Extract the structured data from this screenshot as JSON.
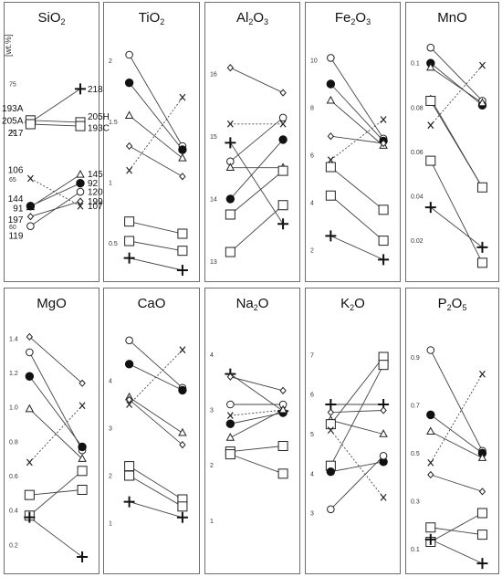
{
  "chart_data": {
    "type": "scatter",
    "ylabel": "[wt.%]",
    "symbols": [
      "filled-circle",
      "open-circle",
      "open-triangle",
      "open-diamond",
      "open-square",
      "plus",
      "x"
    ],
    "panels": [
      {
        "id": "sio2",
        "title": "SiO",
        "sub": "2",
        "ylim": [
          57,
          80
        ],
        "ticks": [
          60,
          65,
          70,
          75
        ],
        "pairs": [
          {
            "s": "plus",
            "v": [
              71.0,
              74.5
            ],
            "dash": false
          },
          {
            "s": "open-square",
            "v": [
              71.2,
              71.0
            ],
            "dash": false
          },
          {
            "s": "open-square",
            "v": [
              70.8,
              70.6
            ],
            "dash": false
          },
          {
            "s": "x",
            "v": [
              65.1,
              62.2
            ],
            "dash": true
          },
          {
            "s": "open-triangle",
            "v": [
              62.1,
              65.5
            ],
            "dash": false
          },
          {
            "s": "filled-circle",
            "v": [
              62.2,
              64.6
            ],
            "dash": false
          },
          {
            "s": "open-circle",
            "v": [
              60.1,
              63.7
            ],
            "dash": false
          },
          {
            "s": "open-diamond",
            "v": [
              61.1,
              62.7
            ],
            "dash": false
          }
        ],
        "labels": [
          {
            "t": "193A",
            "side": "l",
            "y": 72.5
          },
          {
            "t": "205A",
            "side": "l",
            "y": 71.2
          },
          {
            "t": "217",
            "side": "l",
            "y": 69.9
          },
          {
            "t": "218",
            "side": "r",
            "y": 74.5
          },
          {
            "t": "205H",
            "side": "r",
            "y": 71.6
          },
          {
            "t": "193C",
            "side": "r",
            "y": 70.4
          },
          {
            "t": "106",
            "side": "l",
            "y": 66.0
          },
          {
            "t": "144",
            "side": "l",
            "y": 63.0
          },
          {
            "t": "91",
            "side": "l",
            "y": 62.0
          },
          {
            "t": "197",
            "side": "l",
            "y": 60.8
          },
          {
            "t": "119",
            "side": "l",
            "y": 59.1
          },
          {
            "t": "145",
            "side": "r",
            "y": 65.6
          },
          {
            "t": "92",
            "side": "r",
            "y": 64.6
          },
          {
            "t": "120",
            "side": "r",
            "y": 63.7
          },
          {
            "t": "199",
            "side": "r",
            "y": 62.7
          },
          {
            "t": "107",
            "side": "r",
            "y": 62.2
          }
        ]
      },
      {
        "id": "tio2",
        "title": "TiO",
        "sub": "2",
        "ylim": [
          0.25,
          2.2
        ],
        "ticks": [
          0.5,
          1,
          1.5,
          2
        ],
        "tick_labels": [
          "0.5",
          "1",
          "1.5",
          "2"
        ],
        "pairs": [
          {
            "s": "open-circle",
            "v": [
              2.05,
              1.3
            ],
            "dash": false
          },
          {
            "s": "filled-circle",
            "v": [
              1.82,
              1.27
            ],
            "dash": false
          },
          {
            "s": "open-triangle",
            "v": [
              1.55,
              1.2
            ],
            "dash": false
          },
          {
            "s": "open-diamond",
            "v": [
              1.3,
              1.05
            ],
            "dash": false
          },
          {
            "s": "x",
            "v": [
              1.1,
              1.7
            ],
            "dash": true
          },
          {
            "s": "open-square",
            "v": [
              0.68,
              0.58
            ],
            "dash": false
          },
          {
            "s": "open-square",
            "v": [
              0.52,
              0.44
            ],
            "dash": false
          },
          {
            "s": "plus",
            "v": [
              0.38,
              0.28
            ],
            "dash": false
          }
        ]
      },
      {
        "id": "al2o3",
        "title": "Al",
        "sub": "2",
        "title2": "O",
        "sub2": "3",
        "ylim": [
          12.8,
          16.6
        ],
        "ticks": [
          13,
          14,
          15,
          16
        ],
        "pairs": [
          {
            "s": "open-diamond",
            "v": [
              16.1,
              15.7
            ],
            "dash": false
          },
          {
            "s": "x",
            "v": [
              15.2,
              15.2
            ],
            "dash": true
          },
          {
            "s": "plus",
            "v": [
              14.9,
              13.6
            ],
            "dash": false
          },
          {
            "s": "open-circle",
            "v": [
              14.6,
              15.3
            ],
            "dash": false
          },
          {
            "s": "open-triangle",
            "v": [
              14.5,
              14.5
            ],
            "dash": false
          },
          {
            "s": "filled-circle",
            "v": [
              14.0,
              14.95
            ],
            "dash": false
          },
          {
            "s": "open-square",
            "v": [
              13.75,
              14.45
            ],
            "dash": false
          },
          {
            "s": "open-square",
            "v": [
              13.15,
              13.9
            ],
            "dash": false
          }
        ]
      },
      {
        "id": "fe2o3",
        "title": "Fe",
        "sub": "2",
        "title2": "O",
        "sub2": "3",
        "ylim": [
          1,
          11
        ],
        "ticks": [
          2,
          4,
          6,
          8,
          10
        ],
        "pairs": [
          {
            "s": "open-circle",
            "v": [
              10.1,
              6.7
            ],
            "dash": false
          },
          {
            "s": "filled-circle",
            "v": [
              9.0,
              6.6
            ],
            "dash": false
          },
          {
            "s": "open-triangle",
            "v": [
              8.3,
              6.4
            ],
            "dash": false
          },
          {
            "s": "open-diamond",
            "v": [
              6.8,
              6.5
            ],
            "dash": false
          },
          {
            "s": "x",
            "v": [
              5.8,
              7.5
            ],
            "dash": true
          },
          {
            "s": "open-square",
            "v": [
              5.5,
              3.7
            ],
            "dash": false
          },
          {
            "s": "open-square",
            "v": [
              4.3,
              2.4
            ],
            "dash": false
          },
          {
            "s": "plus",
            "v": [
              2.6,
              1.6
            ],
            "dash": false
          }
        ]
      },
      {
        "id": "mno",
        "title": "MnO",
        "sub": "",
        "ylim": [
          0.005,
          0.112
        ],
        "ticks": [
          0.02,
          0.04,
          0.06,
          0.08,
          0.1
        ],
        "tick_labels": [
          "0.02",
          "0.04",
          "0.06",
          "0.08",
          "0.1"
        ],
        "pairs": [
          {
            "s": "open-circle",
            "v": [
              0.107,
              0.083
            ],
            "dash": false
          },
          {
            "s": "filled-circle",
            "v": [
              0.1,
              0.081
            ],
            "dash": false
          },
          {
            "s": "open-triangle",
            "v": [
              0.098,
              0.082
            ],
            "dash": false
          },
          {
            "s": "open-diamond",
            "v": [
              0.084,
              0.044
            ],
            "dash": false
          },
          {
            "s": "open-square",
            "v": [
              0.083,
              0.044
            ],
            "dash": false
          },
          {
            "s": "x",
            "v": [
              0.072,
              0.099
            ],
            "dash": true
          },
          {
            "s": "open-square",
            "v": [
              0.056,
              0.01
            ],
            "dash": false
          },
          {
            "s": "plus",
            "v": [
              0.035,
              0.017
            ],
            "dash": false
          }
        ]
      },
      {
        "id": "mgo",
        "title": "MgO",
        "sub": "",
        "ylim": [
          0.05,
          1.5
        ],
        "ticks": [
          0.2,
          0.4,
          0.6,
          0.8,
          1,
          1.2,
          1.4
        ],
        "tick_labels": [
          "0.2",
          "0.4",
          "0.6",
          "0.8",
          "1.0",
          "1.2",
          "1.4"
        ],
        "pairs": [
          {
            "s": "open-diamond",
            "v": [
              1.41,
              1.14
            ],
            "dash": false
          },
          {
            "s": "open-circle",
            "v": [
              1.32,
              0.75
            ],
            "dash": false
          },
          {
            "s": "filled-circle",
            "v": [
              1.18,
              0.77
            ],
            "dash": false
          },
          {
            "s": "open-triangle",
            "v": [
              0.99,
              0.7
            ],
            "dash": false
          },
          {
            "s": "x",
            "v": [
              0.68,
              1.01
            ],
            "dash": true
          },
          {
            "s": "open-square",
            "v": [
              0.49,
              0.52
            ],
            "dash": false
          },
          {
            "s": "open-square",
            "v": [
              0.37,
              0.63
            ],
            "dash": false
          },
          {
            "s": "plus",
            "v": [
              0.36,
              0.13
            ],
            "dash": false
          }
        ]
      },
      {
        "id": "cao",
        "title": "CaO",
        "sub": "",
        "ylim": [
          0,
          5.25
        ],
        "ticks": [
          1,
          2,
          3,
          4
        ],
        "pairs": [
          {
            "s": "open-circle",
            "v": [
              4.85,
              3.85
            ],
            "dash": false
          },
          {
            "s": "filled-circle",
            "v": [
              4.35,
              3.8
            ],
            "dash": false
          },
          {
            "s": "open-triangle",
            "v": [
              3.65,
              2.9
            ],
            "dash": false
          },
          {
            "s": "open-diamond",
            "v": [
              3.6,
              2.65
            ],
            "dash": false
          },
          {
            "s": "x",
            "v": [
              3.5,
              4.65
            ],
            "dash": true
          },
          {
            "s": "open-square",
            "v": [
              2.2,
              1.5
            ],
            "dash": false
          },
          {
            "s": "open-square",
            "v": [
              2.0,
              1.35
            ],
            "dash": false
          },
          {
            "s": "plus",
            "v": [
              1.45,
              1.12
            ],
            "dash": false
          }
        ]
      },
      {
        "id": "na2o",
        "title": "Na",
        "sub": "2",
        "title2": "O",
        "sub2": "",
        "ylim": [
          0.1,
          4.6
        ],
        "ticks": [
          1,
          2,
          3,
          4
        ],
        "pairs": [
          {
            "s": "plus",
            "v": [
              3.65,
              2.98
            ],
            "dash": false
          },
          {
            "s": "open-diamond",
            "v": [
              3.6,
              3.35
            ],
            "dash": false
          },
          {
            "s": "open-circle",
            "v": [
              3.1,
              3.1
            ],
            "dash": false
          },
          {
            "s": "x",
            "v": [
              2.9,
              3.0
            ],
            "dash": true
          },
          {
            "s": "filled-circle",
            "v": [
              2.75,
              2.95
            ],
            "dash": false
          },
          {
            "s": "open-triangle",
            "v": [
              2.5,
              3.0
            ],
            "dash": false
          },
          {
            "s": "open-square",
            "v": [
              2.25,
              2.35
            ],
            "dash": false
          },
          {
            "s": "open-square",
            "v": [
              2.2,
              1.85
            ],
            "dash": false
          }
        ]
      },
      {
        "id": "k2o",
        "title": "K",
        "sub": "2",
        "title2": "O",
        "sub2": "",
        "ylim": [
          1.55,
          7.85
        ],
        "ticks": [
          3,
          4,
          5,
          6,
          7
        ],
        "pairs": [
          {
            "s": "plus",
            "v": [
              5.75,
              5.75
            ],
            "dash": false
          },
          {
            "s": "open-diamond",
            "v": [
              5.55,
              5.6
            ],
            "dash": false
          },
          {
            "s": "open-triangle",
            "v": [
              5.35,
              5.0
            ],
            "dash": false
          },
          {
            "s": "open-square",
            "v": [
              5.25,
              6.95
            ],
            "dash": false
          },
          {
            "s": "x",
            "v": [
              5.1,
              3.4
            ],
            "dash": true
          },
          {
            "s": "open-square",
            "v": [
              4.2,
              6.75
            ],
            "dash": false
          },
          {
            "s": "filled-circle",
            "v": [
              4.05,
              4.3
            ],
            "dash": false
          },
          {
            "s": "open-circle",
            "v": [
              3.1,
              4.45
            ],
            "dash": false
          }
        ]
      },
      {
        "id": "p2o5",
        "title": "P",
        "sub": "2",
        "title2": "O",
        "sub2": "5",
        "ylim": [
          0.01,
          1.05
        ],
        "ticks": [
          0.1,
          0.3,
          0.5,
          0.7,
          0.9
        ],
        "tick_labels": [
          "0.1",
          "0.3",
          "0.5",
          "0.7",
          "0.9"
        ],
        "pairs": [
          {
            "s": "open-circle",
            "v": [
              0.93,
              0.51
            ],
            "dash": false
          },
          {
            "s": "filled-circle",
            "v": [
              0.66,
              0.5
            ],
            "dash": false
          },
          {
            "s": "open-triangle",
            "v": [
              0.59,
              0.48
            ],
            "dash": false
          },
          {
            "s": "x",
            "v": [
              0.46,
              0.83
            ],
            "dash": true
          },
          {
            "s": "open-diamond",
            "v": [
              0.41,
              0.34
            ],
            "dash": false
          },
          {
            "s": "open-square",
            "v": [
              0.19,
              0.16
            ],
            "dash": false
          },
          {
            "s": "open-square",
            "v": [
              0.13,
              0.25
            ],
            "dash": false
          },
          {
            "s": "plus",
            "v": [
              0.14,
              0.04
            ],
            "dash": false
          }
        ]
      }
    ]
  }
}
